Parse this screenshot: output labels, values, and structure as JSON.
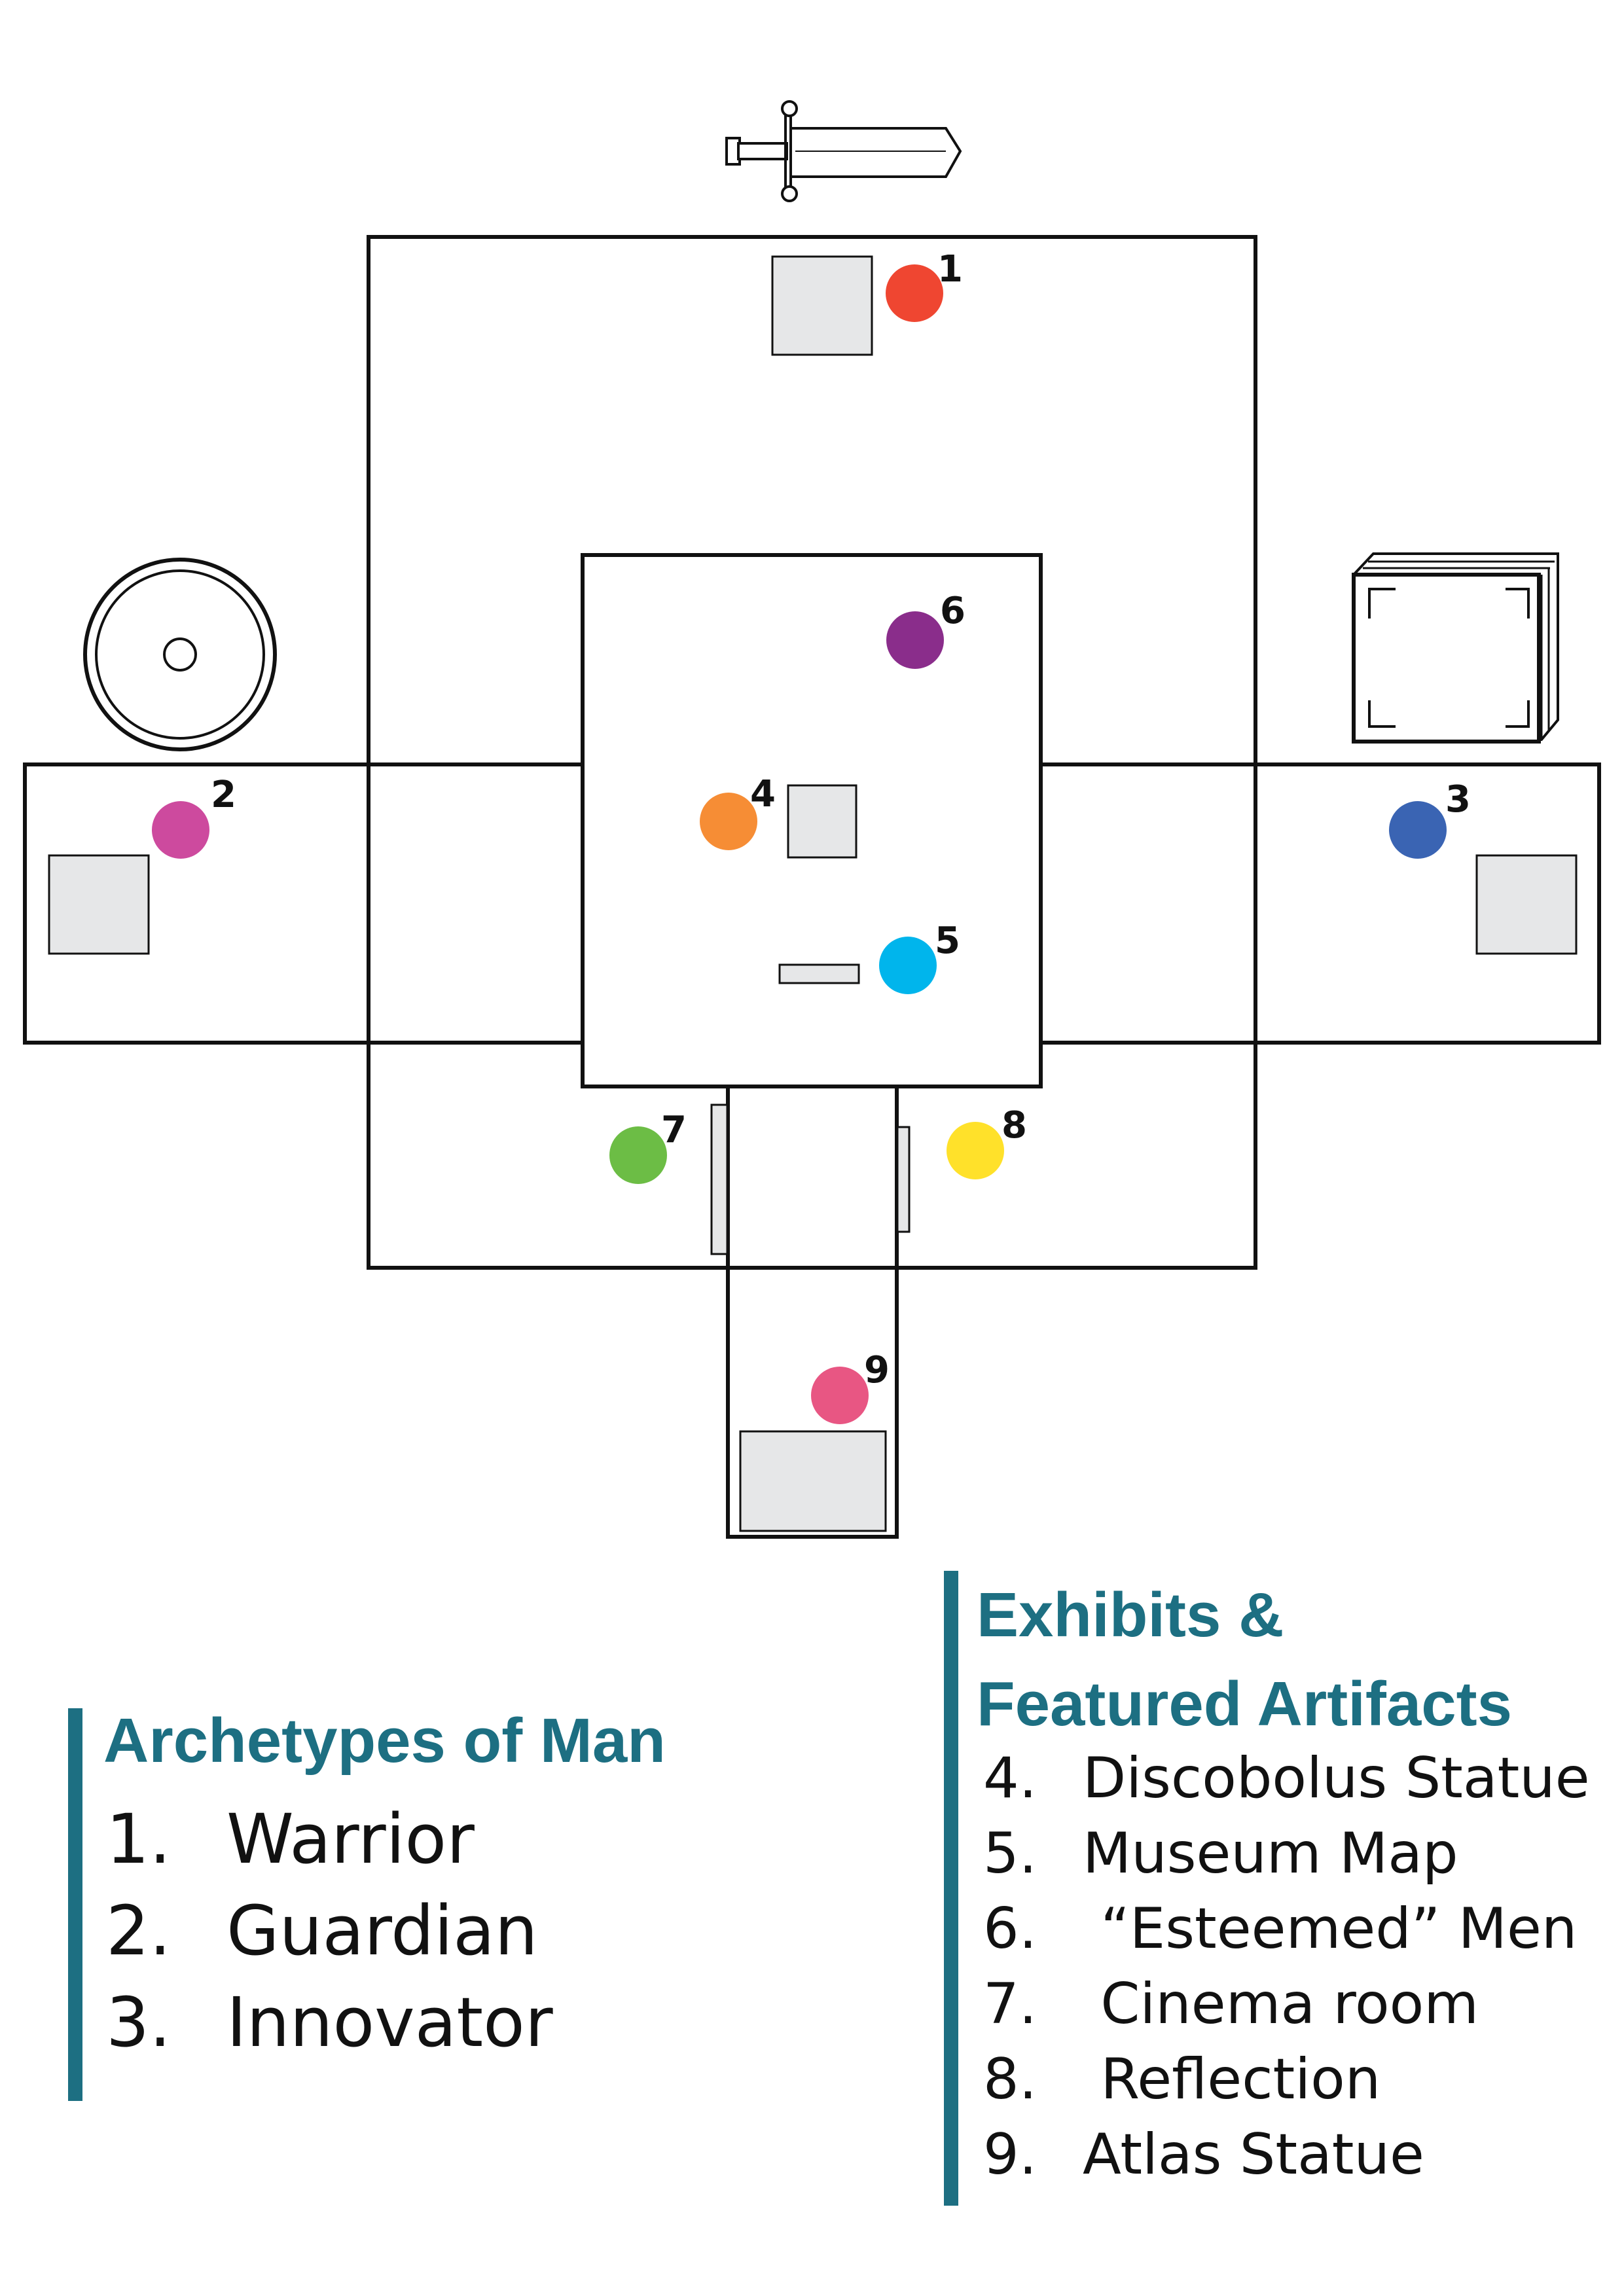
{
  "colors": {
    "accent": "#1d6f82",
    "plinth_fill": "#e6e7e8",
    "line": "#111111"
  },
  "markers": [
    {
      "label": "1",
      "color": "#ef4631"
    },
    {
      "label": "2",
      "color": "#cd4a9e"
    },
    {
      "label": "3",
      "color": "#3a64b3"
    },
    {
      "label": "4",
      "color": "#f68d35"
    },
    {
      "label": "5",
      "color": "#00b5ec"
    },
    {
      "label": "6",
      "color": "#8a2d8b"
    },
    {
      "label": "7",
      "color": "#6cbd45"
    },
    {
      "label": "8",
      "color": "#ffe12a"
    },
    {
      "label": "9",
      "color": "#e85683"
    }
  ],
  "icons": [
    "sword-icon",
    "shield-icon",
    "book-icon"
  ],
  "legends": {
    "archetypes": {
      "title": "Archetypes of Man",
      "items": [
        {
          "num": "1.",
          "label": "Warrior"
        },
        {
          "num": "2.",
          "label": "Guardian"
        },
        {
          "num": "3.",
          "label": "Innovator"
        }
      ]
    },
    "exhibits": {
      "title_line1": "Exhibits &",
      "title_line2": "Featured Artifacts",
      "items": [
        {
          "num": "4.",
          "label": "Discobolus Statue"
        },
        {
          "num": "5.",
          "label": "Museum Map"
        },
        {
          "num": "6.",
          "label": " “Esteemed” Men"
        },
        {
          "num": "7.",
          "label": " Cinema room"
        },
        {
          "num": "8.",
          "label": " Reflection"
        },
        {
          "num": "9.",
          "label": "Atlas Statue"
        }
      ]
    }
  }
}
